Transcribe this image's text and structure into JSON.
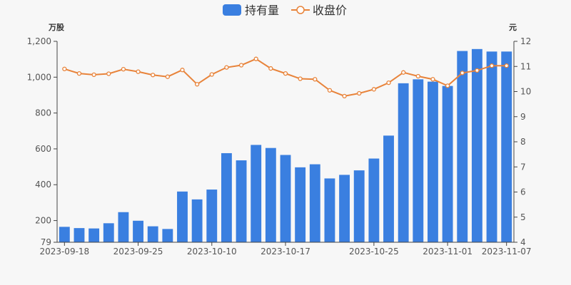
{
  "chart_data": {
    "type": "bar",
    "dates": [
      "2023-09-18",
      "2023-09-19",
      "2023-09-20",
      "2023-09-21",
      "2023-09-22",
      "2023-09-25",
      "2023-09-26",
      "2023-09-27",
      "2023-09-28",
      "2023-10-09",
      "2023-10-10",
      "2023-10-11",
      "2023-10-12",
      "2023-10-13",
      "2023-10-16",
      "2023-10-17",
      "2023-10-18",
      "2023-10-19",
      "2023-10-20",
      "2023-10-23",
      "2023-10-24",
      "2023-10-25",
      "2023-10-26",
      "2023-10-27",
      "2023-10-30",
      "2023-10-31",
      "2023-11-01",
      "2023-11-02",
      "2023-11-03",
      "2023-11-06",
      "2023-11-07"
    ],
    "x_tick_labels": [
      "2023-09-18",
      "2023-09-25",
      "2023-10-10",
      "2023-10-17",
      "2023-10-25",
      "2023-11-01",
      "2023-11-07"
    ],
    "series": [
      {
        "name": "持有量",
        "type": "bar",
        "axis": "left",
        "color": "#3a7fe0",
        "values": [
          165,
          158,
          156,
          185,
          247,
          199,
          168,
          153,
          362,
          318,
          373,
          576,
          536,
          622,
          605,
          566,
          497,
          514,
          435,
          455,
          480,
          546,
          674,
          966,
          988,
          975,
          951,
          1146,
          1157,
          1143,
          1143
        ]
      },
      {
        "name": "收盘价",
        "type": "line",
        "axis": "right",
        "color": "#e8833a",
        "values": [
          10.9,
          10.72,
          10.67,
          10.71,
          10.89,
          10.79,
          10.66,
          10.59,
          10.86,
          10.29,
          10.68,
          10.96,
          11.05,
          11.3,
          10.92,
          10.72,
          10.51,
          10.49,
          10.05,
          9.82,
          9.93,
          10.09,
          10.35,
          10.76,
          10.61,
          10.49,
          10.23,
          10.74,
          10.84,
          11.03,
          11.03
        ]
      }
    ],
    "left_axis": {
      "unit": "万股",
      "min": 79,
      "max": 1200,
      "ticks": [
        "79",
        "200",
        "400",
        "600",
        "800",
        "1,000",
        "1,200"
      ],
      "tick_values": [
        79,
        200,
        400,
        600,
        800,
        1000,
        1200
      ]
    },
    "right_axis": {
      "unit": "元",
      "min": 4,
      "max": 12,
      "ticks": [
        "4",
        "5",
        "6",
        "7",
        "8",
        "9",
        "10",
        "11",
        "12"
      ],
      "tick_values": [
        4,
        5,
        6,
        7,
        8,
        9,
        10,
        11,
        12
      ]
    },
    "legend_position": "top-center",
    "grid": false
  }
}
